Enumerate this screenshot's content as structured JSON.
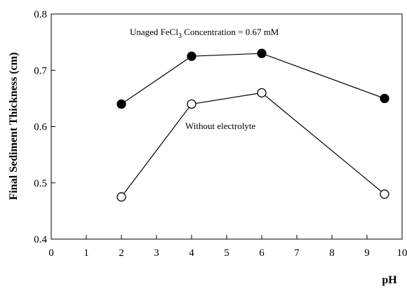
{
  "chart_data": {
    "type": "line",
    "xlabel": "pH",
    "ylabel": "Final Sediment Thickness (cm)",
    "xlim": [
      0,
      10
    ],
    "ylim": [
      0.4,
      0.8
    ],
    "x_ticks": [
      "0",
      "1",
      "2",
      "3",
      "4",
      "5",
      "6",
      "7",
      "8",
      "9",
      "10"
    ],
    "y_ticks": [
      "0.4",
      "0.5",
      "0.6",
      "0.7",
      "0.8"
    ],
    "grid": false,
    "series": [
      {
        "name": "Unaged FeCl3 Concentration = 0.67 mM",
        "marker": "filled-circle",
        "color": "#000000",
        "x": [
          2,
          4,
          6,
          9.5
        ],
        "y": [
          0.64,
          0.725,
          0.73,
          0.65
        ]
      },
      {
        "name": "Without electrolyte",
        "marker": "open-circle",
        "color": "#000000",
        "x": [
          2,
          4,
          6,
          9.5
        ],
        "y": [
          0.475,
          0.64,
          0.66,
          0.48
        ]
      }
    ],
    "annotations": {
      "unaged": {
        "prefix": "Unaged FeCl",
        "subscript": "3",
        "suffix": " Concentration = 0.67 mM"
      },
      "without": "Without electrolyte"
    }
  }
}
